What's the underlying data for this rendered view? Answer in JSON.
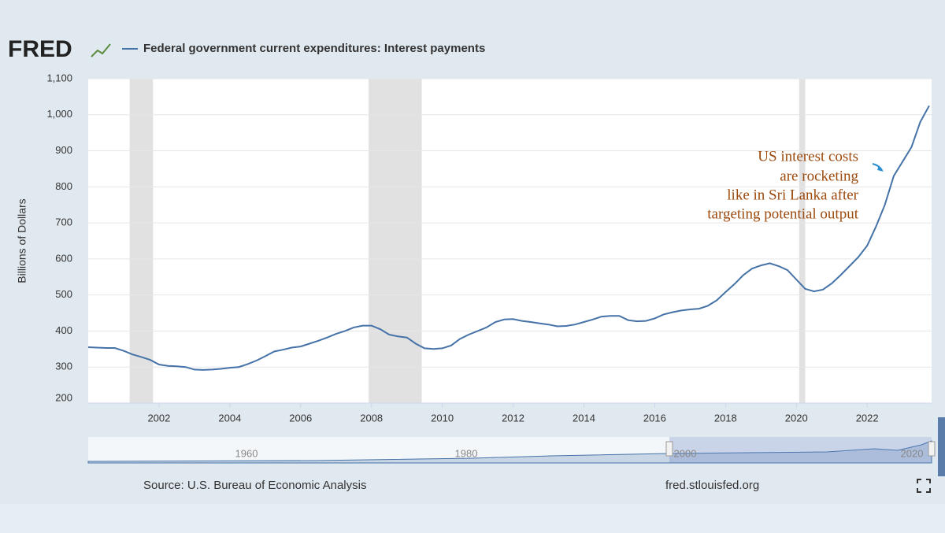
{
  "logo": "FRED",
  "source": "Source: U.S. Bureau of Economic Analysis",
  "site": "fred.stlouisfed.org",
  "navigator_labels": [
    "1960",
    "1980",
    "2000",
    "2020"
  ],
  "chart_data": {
    "type": "line",
    "y_label": "Billions of Dollars",
    "annotation": [
      "US interest costs",
      "are rocketing",
      "like in Sri Lanka after",
      "targeting potential output"
    ],
    "recessions": [
      [
        2001.17,
        2001.83
      ],
      [
        2007.92,
        2009.42
      ],
      [
        2020.08,
        2020.25
      ]
    ],
    "x": [
      2000,
      2000.25,
      2000.5,
      2000.75,
      2001,
      2001.25,
      2001.5,
      2001.75,
      2002,
      2002.25,
      2002.5,
      2002.75,
      2003,
      2003.25,
      2003.5,
      2003.75,
      2004,
      2004.25,
      2004.5,
      2004.75,
      2005,
      2005.25,
      2005.5,
      2005.75,
      2006,
      2006.25,
      2006.5,
      2006.75,
      2007,
      2007.25,
      2007.5,
      2007.75,
      2008,
      2008.25,
      2008.5,
      2008.75,
      2009,
      2009.25,
      2009.5,
      2009.75,
      2010,
      2010.25,
      2010.5,
      2010.75,
      2011,
      2011.25,
      2011.5,
      2011.75,
      2012,
      2012.25,
      2012.5,
      2012.75,
      2013,
      2013.25,
      2013.5,
      2013.75,
      2014,
      2014.25,
      2014.5,
      2014.75,
      2015,
      2015.25,
      2015.5,
      2015.75,
      2016,
      2016.25,
      2016.5,
      2016.75,
      2017,
      2017.25,
      2017.5,
      2017.75,
      2018,
      2018.25,
      2018.5,
      2018.75,
      2019,
      2019.25,
      2019.5,
      2019.75,
      2020,
      2020.25,
      2020.5,
      2020.75,
      2021,
      2021.25,
      2021.5,
      2021.75,
      2022,
      2022.25,
      2022.5,
      2022.75,
      2023,
      2023.25,
      2023.5,
      2023.75
    ],
    "series": [
      {
        "name": "Federal government current expenditures: Interest payments",
        "color": "#4572a7",
        "values": [
          355,
          354,
          353,
          353,
          345,
          335,
          328,
          320,
          307,
          303,
          302,
          300,
          293,
          292,
          293,
          295,
          298,
          300,
          308,
          318,
          330,
          343,
          348,
          354,
          357,
          365,
          373,
          382,
          392,
          400,
          410,
          415,
          415,
          405,
          390,
          385,
          382,
          365,
          352,
          350,
          352,
          360,
          378,
          390,
          400,
          410,
          425,
          432,
          433,
          428,
          425,
          421,
          418,
          413,
          414,
          418,
          425,
          432,
          440,
          442,
          442,
          430,
          427,
          428,
          435,
          446,
          452,
          457,
          460,
          462,
          470,
          485,
          508,
          530,
          555,
          573,
          582,
          588,
          580,
          569,
          543,
          517,
          510,
          515,
          532,
          555,
          580,
          605,
          637,
          690,
          750,
          830,
          870,
          910,
          980,
          1025
        ]
      }
    ],
    "xlim": [
      2000,
      2023.82
    ],
    "ylim": [
      200,
      1100
    ],
    "xticks": [
      2002,
      2004,
      2006,
      2008,
      2010,
      2012,
      2014,
      2016,
      2018,
      2020,
      2022
    ],
    "yticks": [
      200,
      300,
      400,
      500,
      600,
      700,
      800,
      900,
      {
        "value": 1000,
        "label": "1,000"
      },
      {
        "value": 1100,
        "label": "1,100"
      }
    ],
    "grid": true,
    "recession_color": "#e1e1e1"
  }
}
